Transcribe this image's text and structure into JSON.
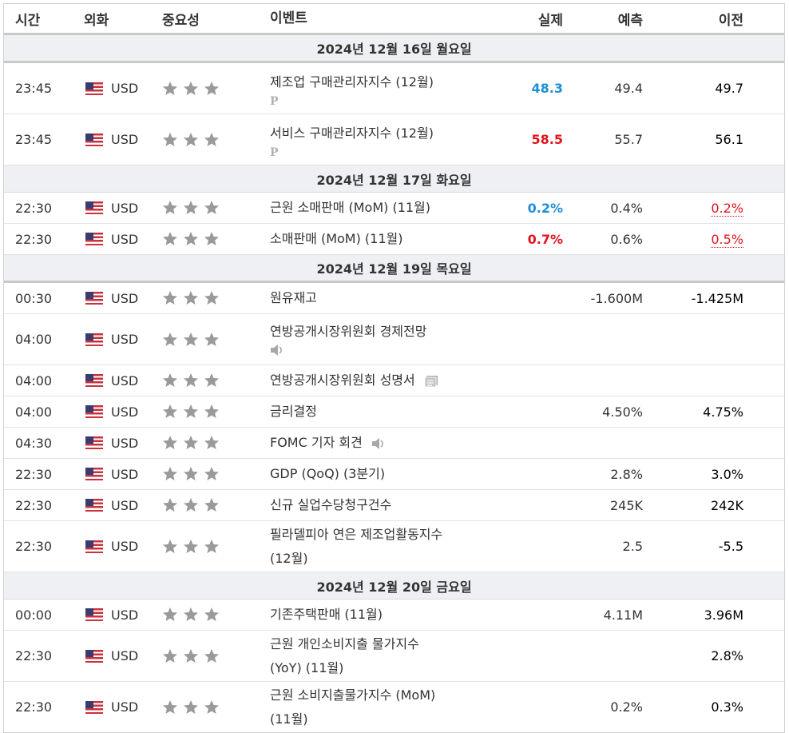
{
  "header": {
    "time": "시간",
    "currency": "외화",
    "importance": "중요성",
    "event": "이벤트",
    "actual": "실제",
    "forecast": "예측",
    "previous": "이전"
  },
  "days": {
    "d16": "2024년 12월 16일 월요일",
    "d17": "2024년 12월 17일 화요일",
    "d19": "2024년 12월 19일 목요일",
    "d20": "2024년 12월 20일 금요일"
  },
  "rows": [
    {
      "time": "23:45",
      "currency": "USD",
      "event": "제조업 구매관리자지수 (12월)",
      "actual": "48.3",
      "forecast": "49.4",
      "previous": "49.7"
    },
    {
      "time": "23:45",
      "currency": "USD",
      "event": "서비스 구매관리자지수 (12월)",
      "actual": "58.5",
      "forecast": "55.7",
      "previous": "56.1"
    },
    {
      "time": "22:30",
      "currency": "USD",
      "event": "근원 소매판매 (MoM) (11월)",
      "actual": "0.2%",
      "forecast": "0.4%",
      "previous": "0.2%"
    },
    {
      "time": "22:30",
      "currency": "USD",
      "event": "소매판매 (MoM) (11월)",
      "actual": "0.7%",
      "forecast": "0.6%",
      "previous": "0.5%"
    },
    {
      "time": "00:30",
      "currency": "USD",
      "event": "원유재고",
      "actual": "",
      "forecast": "-1.600M",
      "previous": "-1.425M"
    },
    {
      "time": "04:00",
      "currency": "USD",
      "event": "연방공개시장위원회 경제전망",
      "actual": "",
      "forecast": "",
      "previous": ""
    },
    {
      "time": "04:00",
      "currency": "USD",
      "event": "연방공개시장위원회 성명서",
      "actual": "",
      "forecast": "",
      "previous": ""
    },
    {
      "time": "04:00",
      "currency": "USD",
      "event": "금리결정",
      "actual": "",
      "forecast": "4.50%",
      "previous": "4.75%"
    },
    {
      "time": "04:30",
      "currency": "USD",
      "event": "FOMC 기자 회견",
      "actual": "",
      "forecast": "",
      "previous": ""
    },
    {
      "time": "22:30",
      "currency": "USD",
      "event": "GDP (QoQ) (3분기)",
      "actual": "",
      "forecast": "2.8%",
      "previous": "3.0%"
    },
    {
      "time": "22:30",
      "currency": "USD",
      "event": "신규 실업수당청구건수",
      "actual": "",
      "forecast": "245K",
      "previous": "242K"
    },
    {
      "time": "22:30",
      "currency": "USD",
      "event_line1": "필라델피아 연은 제조업활동지수",
      "event_line2": "(12월)",
      "actual": "",
      "forecast": "2.5",
      "previous": "-5.5"
    },
    {
      "time": "00:00",
      "currency": "USD",
      "event": "기존주택판매 (11월)",
      "actual": "",
      "forecast": "4.11M",
      "previous": "3.96M"
    },
    {
      "time": "22:30",
      "currency": "USD",
      "event_line1": "근원 개인소비지출 물가지수",
      "event_line2": "(YoY) (11월)",
      "actual": "",
      "forecast": "",
      "previous": "2.8%"
    },
    {
      "time": "22:30",
      "currency": "USD",
      "event_line1": "근원 소비지출물가지수 (MoM)",
      "event_line2": "(11월)",
      "actual": "",
      "forecast": "0.2%",
      "previous": "0.3%"
    }
  ],
  "icons": {
    "preliminary": "P",
    "speaker": "speaker-icon",
    "document": "document-icon",
    "flag": "us-flag-icon",
    "star": "star-icon"
  },
  "colors": {
    "actual_better": "#1e8fd6",
    "actual_worse": "#e0141e",
    "day_band": "#eef0f3"
  }
}
